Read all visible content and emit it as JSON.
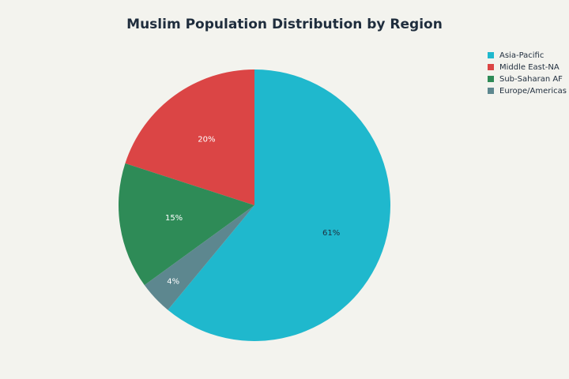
{
  "chart_data": {
    "type": "pie",
    "title": "Muslim Population Distribution by Region",
    "categories": [
      "Asia-Pacific",
      "Middle East-NA",
      "Sub-Saharan AF",
      "Europe/Americas"
    ],
    "values": [
      61,
      20,
      15,
      4
    ],
    "value_labels": [
      "61%",
      "20%",
      "15%",
      "4%"
    ],
    "colors": [
      "#1fb8cd",
      "#db4545",
      "#2e8b57",
      "#5d878f"
    ],
    "legend": "top-right"
  }
}
